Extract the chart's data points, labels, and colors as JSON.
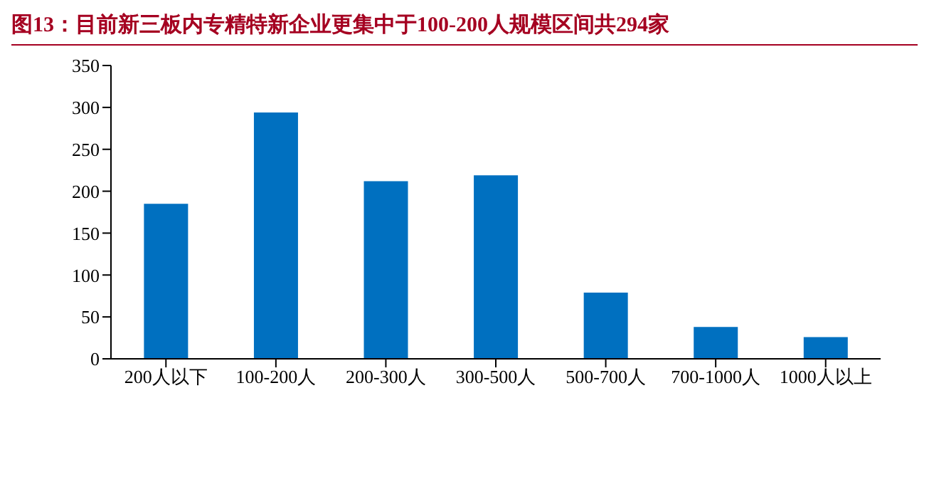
{
  "chart_data": {
    "type": "bar",
    "title": "图13：目前新三板内专精特新企业更集中于100-200人规模区间共294家",
    "categories": [
      "200人以下",
      "100-200人",
      "200-300人",
      "300-500人",
      "500-700人",
      "700-1000人",
      "1000人以上"
    ],
    "values": [
      185,
      294,
      212,
      219,
      79,
      38,
      26
    ],
    "color": "#0070c0",
    "ylim": [
      0,
      350
    ],
    "yticks": [
      0,
      50,
      100,
      150,
      200,
      250,
      300,
      350
    ],
    "grid": false
  }
}
